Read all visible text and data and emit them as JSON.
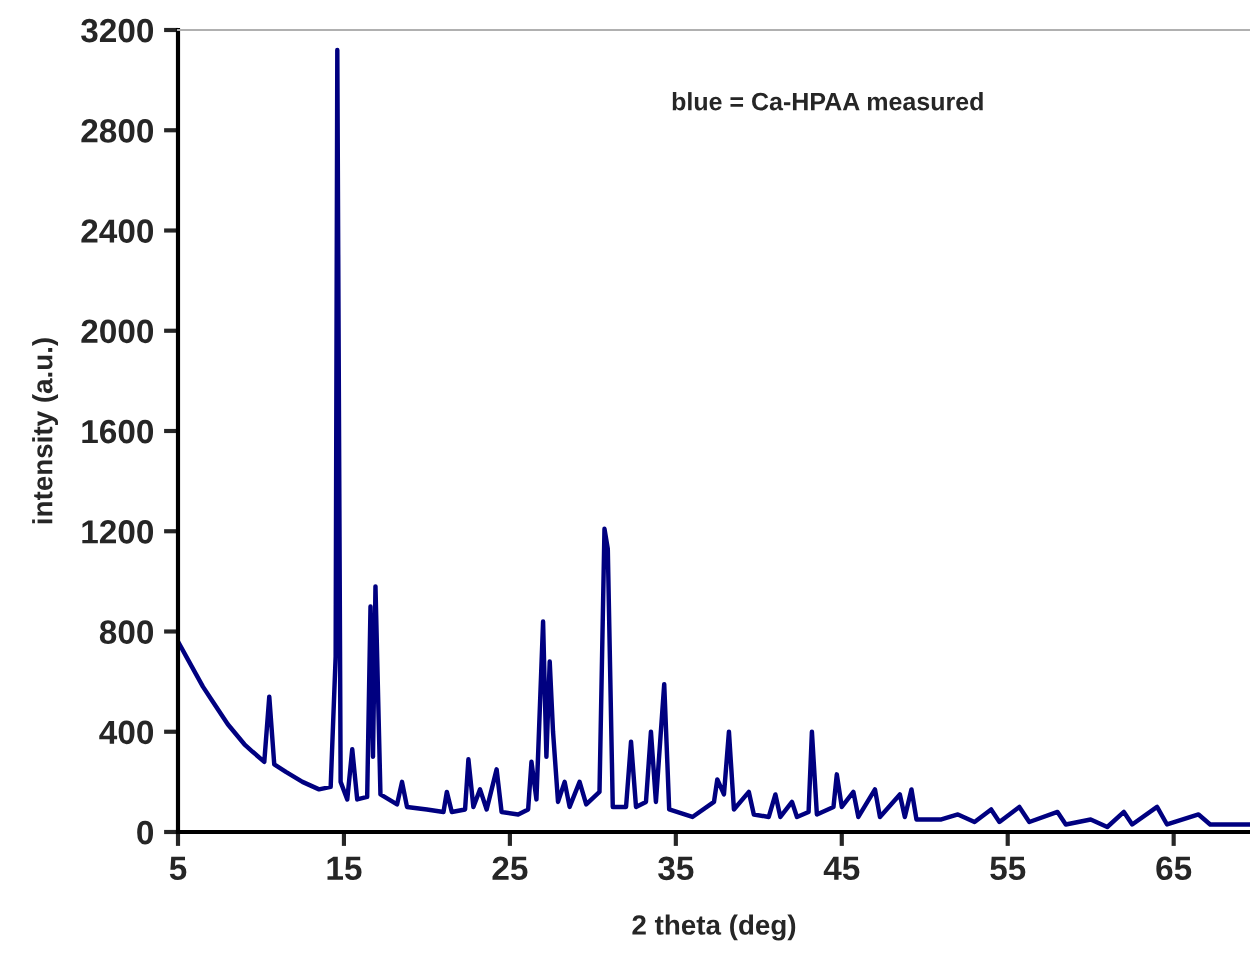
{
  "chart_data": {
    "type": "line",
    "xlabel": "2 theta (deg)",
    "ylabel": "intensity (a.u.)",
    "annotations": [
      "blue = Ca-HPAA measured"
    ],
    "xlim": [
      5,
      69.6
    ],
    "xticks": [
      5,
      15,
      25,
      35,
      45,
      55,
      65
    ],
    "ylim": [
      0,
      3200
    ],
    "yticks": [
      0,
      400,
      800,
      1200,
      1600,
      2000,
      2400,
      2800,
      3200
    ],
    "grid": false,
    "marker": "none",
    "line_style": "solid",
    "series": [
      {
        "color": "#000080",
        "x": [
          5,
          5.5,
          6,
          6.5,
          7,
          7.5,
          8,
          8.5,
          9,
          9.5,
          10.2,
          10.5,
          10.8,
          11.5,
          12.5,
          13.5,
          14.2,
          14.5,
          14.6,
          14.8,
          15.2,
          15.5,
          15.8,
          16.4,
          16.6,
          16.75,
          16.9,
          17.2,
          18.2,
          18.5,
          18.8,
          20,
          21.0,
          21.2,
          21.5,
          22.3,
          22.5,
          22.8,
          23.2,
          23.6,
          24.2,
          24.5,
          25.5,
          26.1,
          26.3,
          26.6,
          27.0,
          27.2,
          27.4,
          27.6,
          27.9,
          28.3,
          28.6,
          29.2,
          29.6,
          30.4,
          30.7,
          30.9,
          31.2,
          32.0,
          32.3,
          32.6,
          33.2,
          33.5,
          33.8,
          34.3,
          34.6,
          36,
          37.3,
          37.5,
          37.9,
          38.2,
          38.5,
          39.4,
          39.7,
          40.6,
          41.0,
          41.3,
          42.0,
          42.3,
          43.0,
          43.2,
          43.5,
          44.5,
          44.7,
          45.0,
          45.7,
          46.0,
          47.0,
          47.3,
          48.5,
          48.8,
          49.2,
          49.5,
          51,
          52,
          53,
          54.0,
          54.5,
          55.7,
          56.3,
          58,
          58.5,
          60,
          61,
          62,
          62.5,
          64,
          64.6,
          66.5,
          67.2,
          69.6
        ],
        "values": [
          760,
          700,
          640,
          580,
          530,
          480,
          430,
          390,
          350,
          320,
          280,
          540,
          270,
          240,
          200,
          170,
          180,
          700,
          3120,
          200,
          130,
          330,
          130,
          140,
          900,
          300,
          980,
          150,
          110,
          200,
          100,
          90,
          80,
          160,
          80,
          90,
          290,
          100,
          170,
          90,
          250,
          80,
          70,
          90,
          280,
          130,
          840,
          300,
          680,
          400,
          120,
          200,
          100,
          200,
          110,
          160,
          1210,
          1130,
          100,
          100,
          360,
          100,
          120,
          400,
          120,
          590,
          90,
          60,
          120,
          210,
          150,
          400,
          90,
          160,
          70,
          60,
          150,
          60,
          120,
          60,
          80,
          400,
          70,
          100,
          230,
          100,
          160,
          60,
          170,
          60,
          150,
          60,
          170,
          50,
          50,
          70,
          40,
          90,
          40,
          100,
          40,
          80,
          30,
          50,
          20,
          80,
          30,
          100,
          30,
          70,
          30,
          30
        ]
      }
    ]
  }
}
